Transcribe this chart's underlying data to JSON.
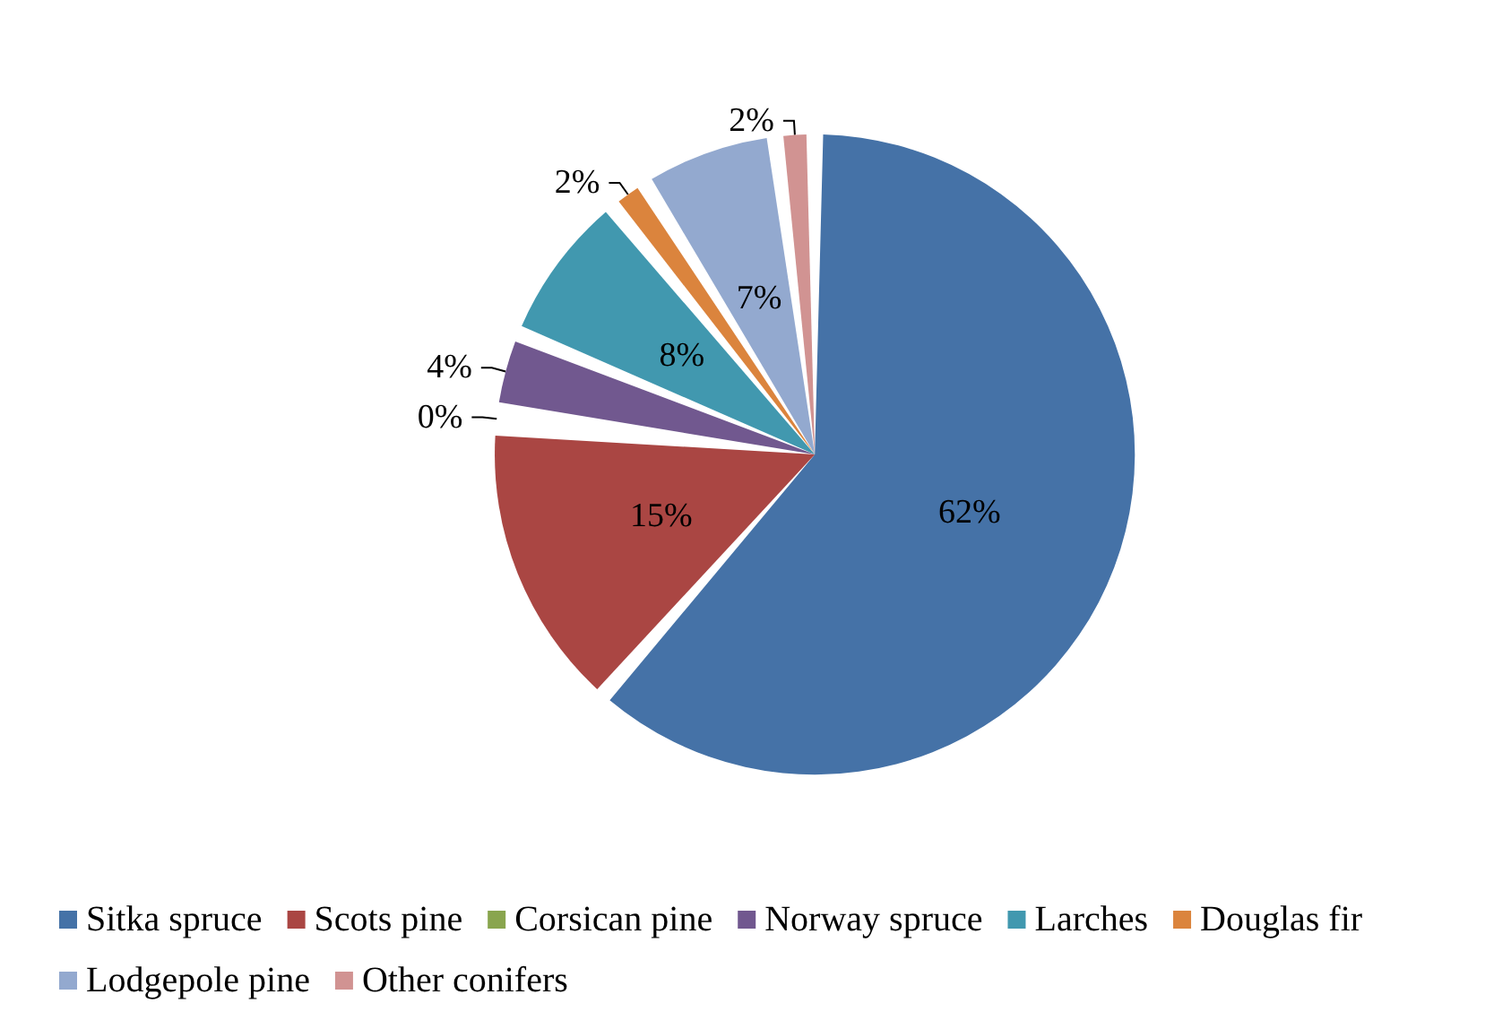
{
  "chart_data": {
    "type": "pie",
    "categories": [
      "Sitka spruce",
      "Scots pine",
      "Corsican pine",
      "Norway spruce",
      "Larches",
      "Douglas fir",
      "Lodgepole pine",
      "Other conifers"
    ],
    "values": [
      62,
      15,
      0,
      4,
      8,
      2,
      7,
      2
    ],
    "value_labels": [
      "62%",
      "15%",
      "0%",
      "4%",
      "8%",
      "2%",
      "7%",
      "2%"
    ],
    "colors": [
      "#4572a7",
      "#aa4643",
      "#89a54e",
      "#71588f",
      "#4198af",
      "#db843d",
      "#93a9cf",
      "#d19392"
    ],
    "legend": "bottom"
  }
}
